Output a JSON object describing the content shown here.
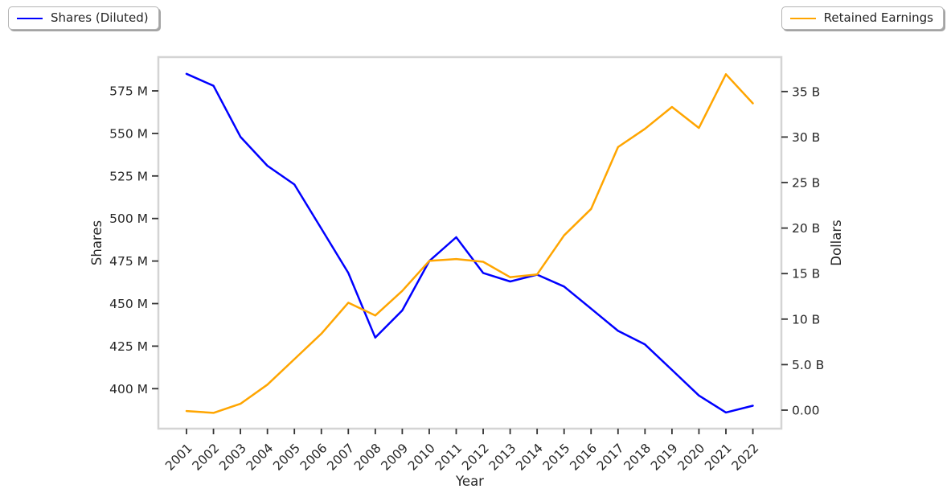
{
  "legend_left": {
    "label": "Shares (Diluted)",
    "color": "#0000ff"
  },
  "legend_right": {
    "label": "Retained Earnings",
    "color": "#ffa500"
  },
  "chart_data": {
    "type": "line",
    "title": "",
    "xlabel": "Year",
    "ylabel_left": "Shares",
    "ylabel_right": "Dollars",
    "grid": false,
    "legend_position": "outside top-left (Shares) and outside top-right (Retained Earnings)",
    "x": [
      2001,
      2002,
      2003,
      2004,
      2005,
      2006,
      2007,
      2008,
      2009,
      2010,
      2011,
      2012,
      2013,
      2014,
      2015,
      2016,
      2017,
      2018,
      2019,
      2020,
      2021,
      2022
    ],
    "x_tick_labels": [
      "2001",
      "2002",
      "2003",
      "2004",
      "2005",
      "2006",
      "2007",
      "2008",
      "2009",
      "2010",
      "2011",
      "2012",
      "2013",
      "2014",
      "2015",
      "2016",
      "2017",
      "2018",
      "2019",
      "2020",
      "2021",
      "2022"
    ],
    "series": [
      {
        "name": "Shares (Diluted)",
        "axis": "left",
        "color": "#0000ff",
        "units": "millions of shares",
        "values": [
          585,
          578,
          548,
          531,
          520,
          494,
          468,
          430,
          446,
          475,
          489,
          468,
          463,
          467,
          460,
          447,
          434,
          426,
          411,
          396,
          386,
          390
        ]
      },
      {
        "name": "Retained Earnings",
        "axis": "right",
        "color": "#ffa500",
        "units": "billions of dollars",
        "values": [
          -0.1,
          -0.3,
          0.7,
          2.8,
          5.6,
          8.4,
          11.8,
          10.4,
          13.1,
          16.4,
          16.6,
          16.3,
          14.6,
          14.9,
          19.2,
          22.1,
          28.9,
          30.9,
          33.3,
          31.0,
          36.9,
          33.7
        ]
      }
    ],
    "y_left_axis": {
      "label": "Shares",
      "range_millions": [
        376.5,
        594.8
      ],
      "ticks": [
        {
          "v": 400,
          "t": "400 M"
        },
        {
          "v": 425,
          "t": "425 M"
        },
        {
          "v": 450,
          "t": "450 M"
        },
        {
          "v": 475,
          "t": "475 M"
        },
        {
          "v": 500,
          "t": "500 M"
        },
        {
          "v": 525,
          "t": "525 M"
        },
        {
          "v": 550,
          "t": "550 M"
        },
        {
          "v": 575,
          "t": "575 M"
        }
      ]
    },
    "y_right_axis": {
      "label": "Dollars",
      "range_billions": [
        -2.0,
        38.8
      ],
      "ticks": [
        {
          "v": 0,
          "t": "0.00"
        },
        {
          "v": 5,
          "t": "5.0 B"
        },
        {
          "v": 10,
          "t": "10 B"
        },
        {
          "v": 15,
          "t": "15 B"
        },
        {
          "v": 20,
          "t": "20 B"
        },
        {
          "v": 25,
          "t": "25 B"
        },
        {
          "v": 30,
          "t": "30 B"
        },
        {
          "v": 35,
          "t": "35 B"
        }
      ]
    }
  }
}
